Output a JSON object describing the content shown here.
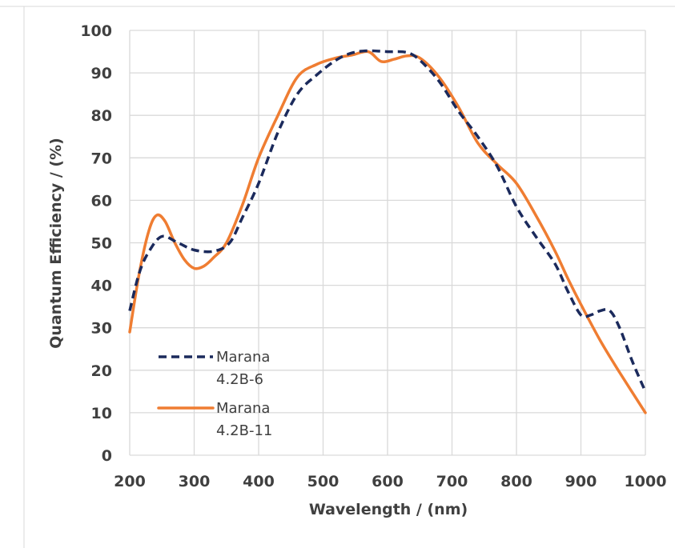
{
  "chart_data": {
    "type": "line",
    "xlabel": "Wavelength / (nm)",
    "ylabel": "Quantum Efficiency / (%)",
    "xlim": [
      200,
      1000
    ],
    "ylim": [
      0,
      100
    ],
    "xticks": [
      200,
      300,
      400,
      500,
      600,
      700,
      800,
      900,
      1000
    ],
    "yticks": [
      0,
      10,
      20,
      30,
      40,
      50,
      60,
      70,
      80,
      90,
      100
    ],
    "grid": true,
    "legend_position": "bottom-left",
    "series": [
      {
        "name": "Marana 4.2B-6",
        "name_lines": [
          "Marana",
          "4.2B-6"
        ],
        "color": "#1b2a5c",
        "dash": "dashed",
        "x": [
          200,
          215,
          230,
          250,
          275,
          300,
          330,
          355,
          375,
          400,
          430,
          460,
          490,
          520,
          545,
          570,
          600,
          630,
          650,
          680,
          710,
          740,
          770,
          800,
          830,
          860,
          880,
          900,
          915,
          930,
          945,
          960,
          980,
          1000
        ],
        "y": [
          34,
          43,
          48,
          51.5,
          50,
          48.3,
          48,
          50,
          56,
          64,
          76,
          85,
          89.5,
          93,
          94.7,
          95.2,
          95,
          94.8,
          93,
          88,
          81,
          75,
          68,
          58.5,
          51.5,
          45,
          38.5,
          33,
          33,
          34,
          34,
          30,
          22,
          15
        ]
      },
      {
        "name": "Marana 4.2B-11",
        "name_lines": [
          "Marana",
          "4.2B-11"
        ],
        "color": "#ef7d32",
        "dash": "solid",
        "x": [
          200,
          215,
          230,
          242,
          255,
          270,
          285,
          300,
          315,
          330,
          350,
          375,
          400,
          430,
          460,
          490,
          520,
          545,
          570,
          590,
          610,
          630,
          650,
          680,
          710,
          740,
          770,
          800,
          830,
          860,
          880,
          900,
          930,
          960,
          1000
        ],
        "y": [
          29,
          43,
          53,
          56.5,
          55,
          50,
          46,
          44,
          44.5,
          46.5,
          50,
          59,
          70,
          80,
          89,
          92,
          93.5,
          94.2,
          95,
          92.7,
          93.2,
          94,
          93.5,
          89,
          82,
          73.5,
          68.5,
          64,
          56.5,
          48,
          41.5,
          35.5,
          27,
          19.5,
          10
        ]
      }
    ]
  }
}
